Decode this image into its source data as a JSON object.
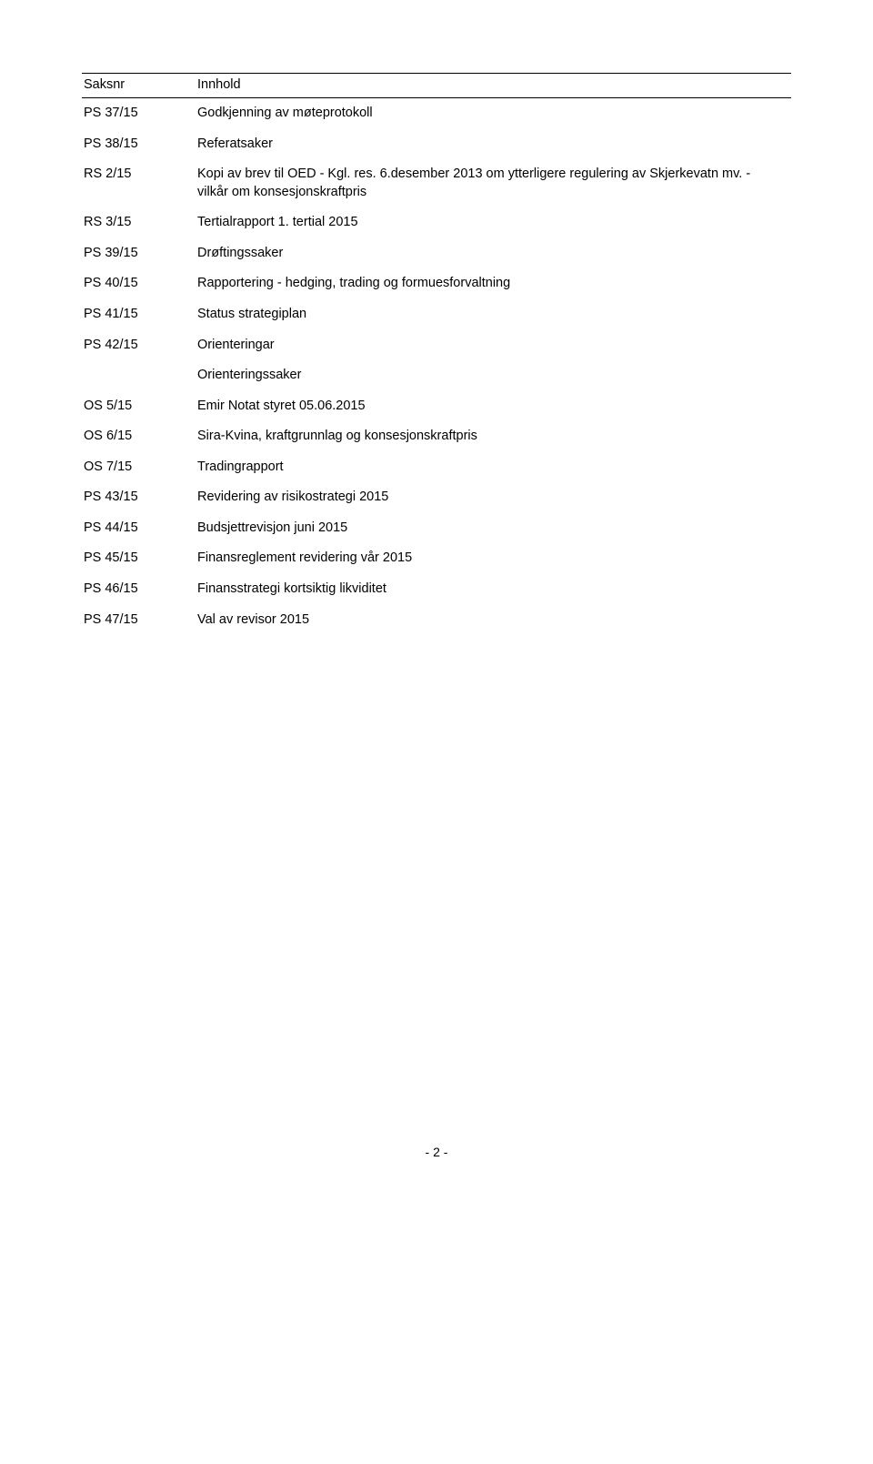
{
  "headers": {
    "col1": "Saksnr",
    "col2": "Innhold"
  },
  "rows": [
    {
      "id": "PS 37/15",
      "text": "Godkjenning av møteprotokoll"
    },
    {
      "id": "PS 38/15",
      "text": "Referatsaker"
    },
    {
      "id": "RS 2/15",
      "text": "Kopi av brev til OED - Kgl. res. 6.desember 2013 om ytterligere regulering av Skjerkevatn mv. - vilkår om konsesjonskraftpris"
    },
    {
      "id": "RS 3/15",
      "text": "Tertialrapport 1. tertial 2015"
    },
    {
      "id": "PS 39/15",
      "text": "Drøftingssaker"
    },
    {
      "id": "PS 40/15",
      "text": "Rapportering - hedging, trading og formuesforvaltning"
    },
    {
      "id": "PS 41/15",
      "text": "Status strategiplan"
    },
    {
      "id": "PS 42/15",
      "text": "Orienteringar"
    },
    {
      "id": "",
      "text": "Orienteringssaker"
    },
    {
      "id": "OS 5/15",
      "text": "Emir Notat styret 05.06.2015"
    },
    {
      "id": "OS 6/15",
      "text": "Sira-Kvina, kraftgrunnlag og konsesjonskraftpris"
    },
    {
      "id": "OS 7/15",
      "text": "Tradingrapport"
    },
    {
      "id": "PS 43/15",
      "text": "Revidering av risikostrategi 2015"
    },
    {
      "id": "PS 44/15",
      "text": "Budsjettrevisjon juni 2015"
    },
    {
      "id": "PS 45/15",
      "text": "Finansreglement revidering vår 2015"
    },
    {
      "id": "PS 46/15",
      "text": "Finansstrategi kortsiktig likviditet"
    },
    {
      "id": "PS 47/15",
      "text": "Val av revisor 2015"
    }
  ],
  "footer": "- 2 -"
}
